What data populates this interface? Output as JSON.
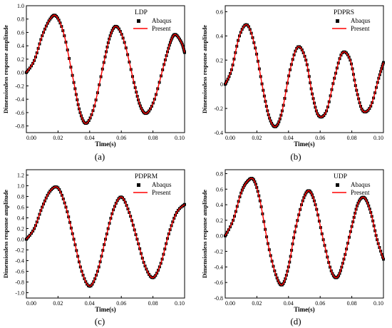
{
  "colors": {
    "abaqus": "#000000",
    "present": "#ff0000",
    "axis": "#000000"
  },
  "chart_data": [
    {
      "type": "line",
      "caption": "(a)",
      "legend_title": "LDP",
      "legend_position": "top-right",
      "xlabel": "Time(s)",
      "ylabel": "Dimensionless response amplitude",
      "xlim": [
        0,
        0.1
      ],
      "ylim": [
        -0.9,
        1.0
      ],
      "xticks": [
        "0.00",
        "0.02",
        "0.04",
        "0.06",
        "0.08",
        "0.10"
      ],
      "yticks": [
        "1.0",
        "0.8",
        "0.6",
        "0.4",
        "0.2",
        "0.0",
        "-0.2",
        "-0.4",
        "-0.6",
        "-0.8"
      ],
      "ytick_values": [
        1.0,
        0.8,
        0.6,
        0.4,
        0.2,
        0.0,
        -0.2,
        -0.4,
        -0.6,
        -0.8
      ],
      "x": [
        0.0,
        0.005,
        0.01,
        0.015,
        0.019,
        0.024,
        0.03,
        0.034,
        0.038,
        0.043,
        0.049,
        0.053,
        0.057,
        0.062,
        0.068,
        0.072,
        0.076,
        0.081,
        0.087,
        0.091,
        0.094,
        0.098,
        0.1
      ],
      "series": [
        {
          "name": "Abaqus",
          "marker": "square",
          "values": [
            0.0,
            0.18,
            0.55,
            0.8,
            0.84,
            0.55,
            -0.15,
            -0.6,
            -0.76,
            -0.5,
            0.15,
            0.55,
            0.69,
            0.45,
            -0.15,
            -0.5,
            -0.61,
            -0.4,
            0.12,
            0.45,
            0.57,
            0.45,
            0.3
          ]
        },
        {
          "name": "Present",
          "marker": "line",
          "values": [
            0.0,
            0.18,
            0.55,
            0.8,
            0.84,
            0.55,
            -0.15,
            -0.6,
            -0.76,
            -0.5,
            0.15,
            0.55,
            0.69,
            0.45,
            -0.15,
            -0.5,
            -0.61,
            -0.4,
            0.12,
            0.45,
            0.57,
            0.45,
            0.3
          ]
        }
      ]
    },
    {
      "type": "line",
      "caption": "(b)",
      "legend_title": "PDPRS",
      "legend_position": "top-right",
      "xlabel": "Time(s)",
      "ylabel": "Dimensionless response amplitude",
      "xlim": [
        0,
        0.1
      ],
      "ylim": [
        -0.4,
        0.65
      ],
      "xticks": [
        "0.00",
        "0.02",
        "0.04",
        "0.06",
        "0.08",
        "0.10"
      ],
      "yticks": [
        "0.6",
        "0.4",
        "0.2",
        "0",
        "-0.2",
        "-0.4"
      ],
      "ytick_values": [
        0.6,
        0.4,
        0.2,
        0.0,
        -0.2,
        -0.4
      ],
      "x": [
        0.0,
        0.004,
        0.009,
        0.014,
        0.019,
        0.024,
        0.028,
        0.032,
        0.036,
        0.041,
        0.046,
        0.051,
        0.055,
        0.059,
        0.064,
        0.069,
        0.074,
        0.079,
        0.083,
        0.087,
        0.092,
        0.097,
        0.1
      ],
      "series": [
        {
          "name": "Abaqus",
          "marker": "square",
          "values": [
            0.0,
            0.12,
            0.4,
            0.49,
            0.3,
            -0.05,
            -0.28,
            -0.35,
            -0.22,
            0.12,
            0.31,
            0.2,
            -0.08,
            -0.26,
            -0.22,
            0.05,
            0.26,
            0.2,
            -0.05,
            -0.22,
            -0.18,
            0.05,
            0.18
          ]
        },
        {
          "name": "Present",
          "marker": "line",
          "values": [
            0.0,
            0.12,
            0.4,
            0.49,
            0.3,
            -0.05,
            -0.28,
            -0.35,
            -0.22,
            0.12,
            0.31,
            0.2,
            -0.08,
            -0.26,
            -0.22,
            0.05,
            0.26,
            0.2,
            -0.05,
            -0.22,
            -0.18,
            0.05,
            0.18
          ]
        }
      ]
    },
    {
      "type": "line",
      "caption": "(c)",
      "legend_title": "PDPRM",
      "legend_position": "top-right",
      "xlabel": "Time(s)",
      "ylabel": "Dimensionless response amplitude",
      "xlim": [
        0,
        0.1
      ],
      "ylim": [
        -1.1,
        1.3
      ],
      "xticks": [
        "0.00",
        "0.02",
        "0.04",
        "0.06",
        "0.08",
        "0.10"
      ],
      "yticks": [
        "1.2",
        "1.0",
        "0.8",
        "0.6",
        "0.4",
        "0.2",
        "0.0",
        "-0.2",
        "-0.4",
        "-0.6",
        "-0.8",
        "-1.0"
      ],
      "ytick_values": [
        1.2,
        1.0,
        0.8,
        0.6,
        0.4,
        0.2,
        0.0,
        -0.2,
        -0.4,
        -0.6,
        -0.8,
        -1.0
      ],
      "x": [
        0.0,
        0.005,
        0.01,
        0.015,
        0.02,
        0.025,
        0.03,
        0.035,
        0.04,
        0.045,
        0.05,
        0.055,
        0.06,
        0.065,
        0.07,
        0.075,
        0.08,
        0.085,
        0.09,
        0.095,
        0.1
      ],
      "series": [
        {
          "name": "Abaqus",
          "marker": "square",
          "values": [
            0.0,
            0.2,
            0.6,
            0.9,
            0.96,
            0.6,
            0.0,
            -0.6,
            -0.88,
            -0.6,
            0.0,
            0.55,
            0.79,
            0.5,
            0.0,
            -0.5,
            -0.72,
            -0.45,
            0.1,
            0.5,
            0.65
          ]
        },
        {
          "name": "Present",
          "marker": "line",
          "values": [
            0.0,
            0.2,
            0.6,
            0.9,
            0.96,
            0.6,
            0.0,
            -0.6,
            -0.88,
            -0.6,
            0.0,
            0.55,
            0.79,
            0.5,
            0.0,
            -0.5,
            -0.72,
            -0.45,
            0.1,
            0.5,
            0.65
          ]
        }
      ]
    },
    {
      "type": "line",
      "caption": "(d)",
      "legend_title": "UDP",
      "legend_position": "top-right",
      "xlabel": "Time(s)",
      "ylabel": "Dimensionless response amplitude",
      "xlim": [
        0,
        0.1
      ],
      "ylim": [
        -0.8,
        0.85
      ],
      "xticks": [
        "0.00",
        "0.02",
        "0.04",
        "0.06",
        "0.08",
        "0.10"
      ],
      "yticks": [
        "0.8",
        "0.6",
        "0.4",
        "0.2",
        "0.0",
        "-0.2",
        "-0.4",
        "-0.6",
        "-0.8"
      ],
      "ytick_values": [
        0.8,
        0.6,
        0.4,
        0.2,
        0.0,
        -0.2,
        -0.4,
        -0.6,
        -0.8
      ],
      "x": [
        0.0,
        0.005,
        0.01,
        0.014,
        0.018,
        0.022,
        0.027,
        0.032,
        0.036,
        0.04,
        0.044,
        0.049,
        0.053,
        0.057,
        0.062,
        0.067,
        0.071,
        0.075,
        0.08,
        0.084,
        0.088,
        0.092,
        0.096,
        0.1
      ],
      "series": [
        {
          "name": "Abaqus",
          "marker": "square",
          "values": [
            0.0,
            0.2,
            0.55,
            0.7,
            0.72,
            0.45,
            -0.1,
            -0.5,
            -0.63,
            -0.4,
            0.05,
            0.45,
            0.58,
            0.4,
            -0.05,
            -0.45,
            -0.53,
            -0.3,
            0.12,
            0.42,
            0.49,
            0.3,
            -0.05,
            -0.3
          ]
        },
        {
          "name": "Present",
          "marker": "line",
          "values": [
            0.0,
            0.2,
            0.55,
            0.7,
            0.72,
            0.45,
            -0.1,
            -0.5,
            -0.63,
            -0.4,
            0.05,
            0.45,
            0.58,
            0.4,
            -0.05,
            -0.45,
            -0.53,
            -0.3,
            0.12,
            0.42,
            0.49,
            0.3,
            -0.05,
            -0.3
          ]
        }
      ]
    }
  ]
}
